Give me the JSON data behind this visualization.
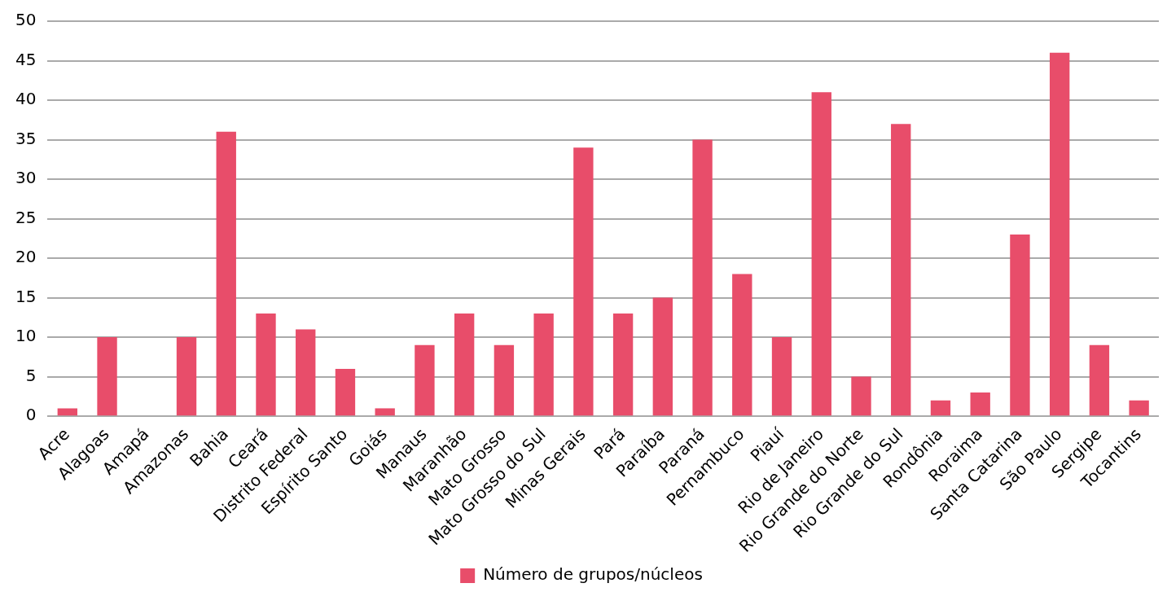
{
  "chart_data": {
    "type": "bar",
    "categories": [
      "Acre",
      "Alagoas",
      "Amapá",
      "Amazonas",
      "Bahia",
      "Ceará",
      "Distrito Federal",
      "Espírito Santo",
      "Goiás",
      "Manaus",
      "Maranhão",
      "Mato Grosso",
      "Mato Grosso do Sul",
      "Minas Gerais",
      "Pará",
      "Paraíba",
      "Paraná",
      "Pernambuco",
      "Piauí",
      "Rio de Janeiro",
      "Rio Grande do Norte",
      "Rio Grande do Sul",
      "Rondônia",
      "Roraima",
      "Santa Catarina",
      "São Paulo",
      "Sergipe",
      "Tocantins"
    ],
    "series": [
      {
        "name": "Número de grupos/núcleos",
        "color": "#e84d6a",
        "values": [
          1,
          10,
          0,
          10,
          36,
          13,
          11,
          6,
          1,
          9,
          13,
          9,
          13,
          34,
          13,
          15,
          35,
          18,
          10,
          41,
          5,
          37,
          2,
          3,
          23,
          46,
          9,
          2
        ]
      }
    ],
    "ylim": [
      0,
      50
    ],
    "yticks": [
      0,
      5,
      10,
      15,
      20,
      25,
      30,
      35,
      40,
      45,
      50
    ],
    "grid": "y",
    "legend": "bottom"
  }
}
